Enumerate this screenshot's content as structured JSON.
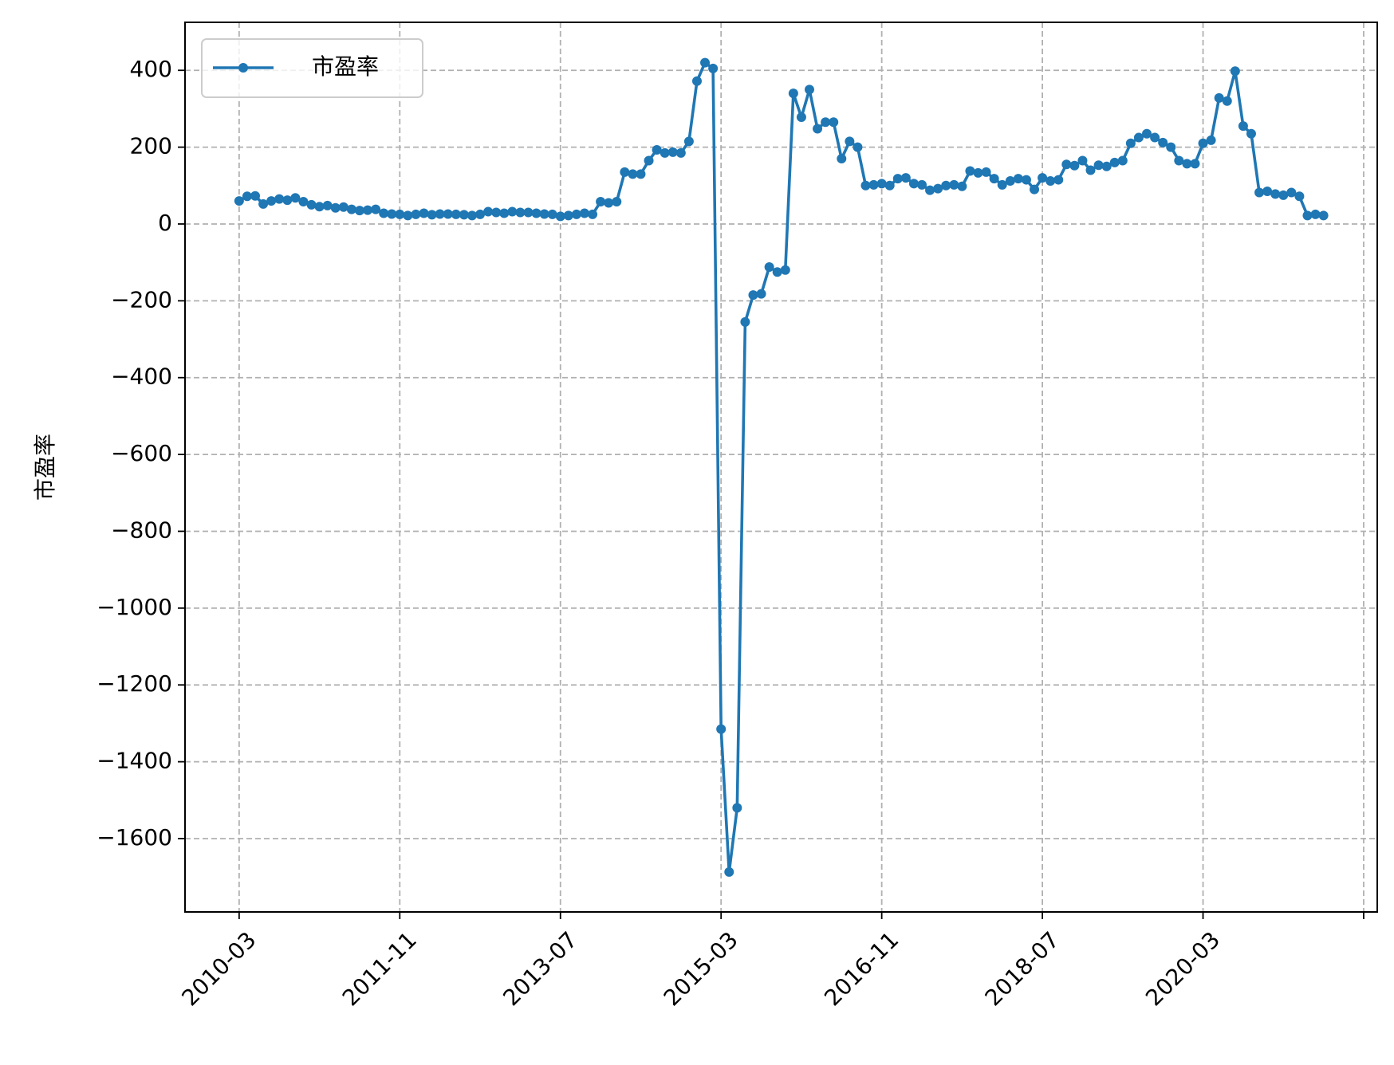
{
  "chart_data": {
    "type": "line",
    "ylabel": "市盈率",
    "x": [
      "2010-03",
      "2010-04",
      "2010-05",
      "2010-06",
      "2010-07",
      "2010-08",
      "2010-09",
      "2010-10",
      "2010-11",
      "2010-12",
      "2011-01",
      "2011-02",
      "2011-03",
      "2011-04",
      "2011-05",
      "2011-06",
      "2011-07",
      "2011-08",
      "2011-09",
      "2011-10",
      "2011-11",
      "2011-12",
      "2012-01",
      "2012-02",
      "2012-03",
      "2012-04",
      "2012-05",
      "2012-06",
      "2012-07",
      "2012-08",
      "2012-09",
      "2012-10",
      "2012-11",
      "2012-12",
      "2013-01",
      "2013-02",
      "2013-03",
      "2013-04",
      "2013-05",
      "2013-06",
      "2013-07",
      "2013-08",
      "2013-09",
      "2013-10",
      "2013-11",
      "2013-12",
      "2014-01",
      "2014-02",
      "2014-03",
      "2014-04",
      "2014-05",
      "2014-06",
      "2014-07",
      "2014-08",
      "2014-09",
      "2014-10",
      "2014-11",
      "2014-12",
      "2015-01",
      "2015-02",
      "2015-03",
      "2015-04",
      "2015-05",
      "2015-06",
      "2015-07",
      "2015-08",
      "2015-09",
      "2015-10",
      "2015-11",
      "2015-12",
      "2016-01",
      "2016-02",
      "2016-03",
      "2016-04",
      "2016-05",
      "2016-06",
      "2016-07",
      "2016-08",
      "2016-09",
      "2016-10",
      "2016-11",
      "2016-12",
      "2017-01",
      "2017-02",
      "2017-03",
      "2017-04",
      "2017-05",
      "2017-06",
      "2017-07",
      "2017-08",
      "2017-09",
      "2017-10",
      "2017-11",
      "2017-12",
      "2018-01",
      "2018-02",
      "2018-03",
      "2018-04",
      "2018-05",
      "2018-06",
      "2018-07",
      "2018-08",
      "2018-09",
      "2018-10",
      "2018-11",
      "2018-12",
      "2019-01",
      "2019-02",
      "2019-03",
      "2019-04",
      "2019-05",
      "2019-06",
      "2019-07",
      "2019-08",
      "2019-09",
      "2019-10",
      "2019-11",
      "2019-12",
      "2020-01",
      "2020-02",
      "2020-03",
      "2020-04",
      "2020-05",
      "2020-06",
      "2020-07",
      "2020-08",
      "2020-09",
      "2020-10",
      "2020-11",
      "2020-12",
      "2021-01",
      "2021-02",
      "2021-03",
      "2021-04",
      "2021-05",
      "2021-06"
    ],
    "series": [
      {
        "name": "市盈率",
        "color": "#1f77b4",
        "values": [
          60,
          72,
          73,
          52,
          60,
          65,
          62,
          68,
          58,
          50,
          45,
          48,
          42,
          44,
          38,
          35,
          36,
          38,
          28,
          26,
          25,
          22,
          25,
          28,
          24,
          26,
          26,
          25,
          24,
          22,
          25,
          32,
          30,
          28,
          32,
          30,
          30,
          28,
          26,
          25,
          20,
          22,
          25,
          28,
          25,
          58,
          55,
          58,
          135,
          130,
          130,
          165,
          193,
          185,
          187,
          185,
          215,
          372,
          420,
          405,
          -1315,
          -1687,
          -1520,
          -255,
          -185,
          -182,
          -112,
          -125,
          -120,
          340,
          278,
          350,
          248,
          265,
          265,
          170,
          215,
          200,
          100,
          102,
          105,
          100,
          118,
          120,
          105,
          102,
          88,
          92,
          100,
          102,
          98,
          138,
          133,
          135,
          118,
          102,
          112,
          118,
          115,
          90,
          120,
          112,
          115,
          155,
          152,
          165,
          140,
          153,
          150,
          160,
          165,
          210,
          225,
          235,
          225,
          212,
          200,
          165,
          157,
          157,
          210,
          218,
          328,
          320,
          398,
          255,
          235,
          82,
          85,
          78,
          75,
          82,
          72,
          22,
          25,
          22
        ]
      }
    ],
    "xlim": [
      "2009-08-09",
      "2021-12-22"
    ],
    "xticks": [
      "2010-03",
      "2011-11",
      "2013-07",
      "2015-03",
      "2016-11",
      "2018-07",
      "2020-03",
      {
        "value": "2021-11",
        "label": null
      }
    ],
    "ylim": [
      -1791,
      525
    ],
    "yticks": [
      {
        "value": -1600,
        "label": "−1600"
      },
      {
        "value": -1400,
        "label": "−1400"
      },
      {
        "value": -1200,
        "label": "−1200"
      },
      {
        "value": -1000,
        "label": "−1000"
      },
      {
        "value": -800,
        "label": "−800"
      },
      {
        "value": -600,
        "label": "−600"
      },
      {
        "value": -400,
        "label": "−400"
      },
      {
        "value": -200,
        "label": "−200"
      },
      0,
      200,
      400
    ],
    "grid": true,
    "legend": "upper left"
  }
}
